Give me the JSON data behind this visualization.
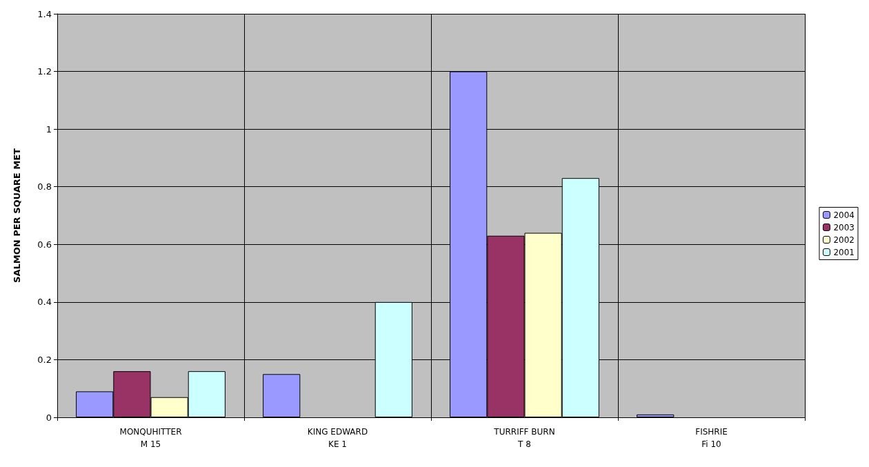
{
  "chart_data": {
    "type": "bar",
    "ylabel": "SALMON PER SQUARE MET",
    "categories": [
      "MONQUHITTER\nM 15",
      "KING EDWARD\nKE 1",
      "TURRIFF BURN\nT 8",
      "FISHRIE\nFi 10"
    ],
    "series": [
      {
        "name": "2004",
        "color": "#9999ff",
        "values": [
          0.09,
          0.15,
          1.2,
          0.01
        ]
      },
      {
        "name": "2003",
        "color": "#993366",
        "values": [
          0.16,
          null,
          0.63,
          null
        ]
      },
      {
        "name": "2002",
        "color": "#ffffcc",
        "values": [
          0.07,
          null,
          0.64,
          null
        ]
      },
      {
        "name": "2001",
        "color": "#ccffff",
        "values": [
          0.16,
          0.4,
          0.83,
          null
        ]
      }
    ],
    "ylim": [
      0,
      1.4
    ],
    "yticks": [
      0,
      0.2,
      0.4,
      0.6,
      0.8,
      1,
      1.2,
      1.4
    ],
    "grid": true,
    "legend": "right"
  }
}
